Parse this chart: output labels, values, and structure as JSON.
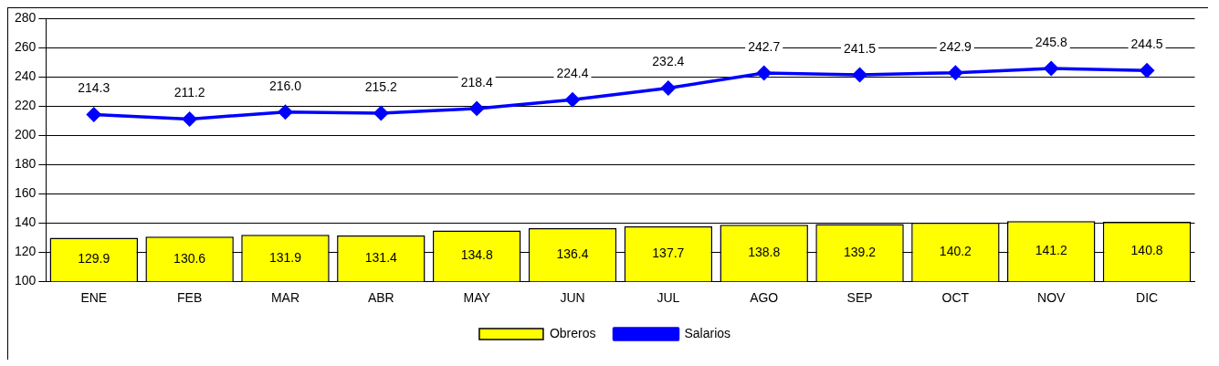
{
  "chart_data": {
    "type": "bar",
    "categories": [
      "ENE",
      "FEB",
      "MAR",
      "ABR",
      "MAY",
      "JUN",
      "JUL",
      "AGO",
      "SEP",
      "OCT",
      "NOV",
      "DIC"
    ],
    "series": [
      {
        "name": "Obreros",
        "color": "#ffff00",
        "values": [
          129.9,
          130.6,
          131.9,
          131.4,
          134.8,
          136.4,
          137.7,
          138.8,
          139.2,
          140.2,
          141.2,
          140.8
        ]
      },
      {
        "name": "Salarios",
        "type": "line",
        "color": "#0000ff",
        "values": [
          214.3,
          211.2,
          216.0,
          215.2,
          218.4,
          224.4,
          232.4,
          242.7,
          241.5,
          242.9,
          245.8,
          244.5
        ]
      }
    ],
    "ylim": [
      100,
      280
    ],
    "yticks": [
      100,
      120,
      140,
      160,
      180,
      200,
      220,
      240,
      260,
      280
    ],
    "grid": "y",
    "legend": "bottom",
    "marker": "diamond",
    "line_style": "solid",
    "value_labels": [
      [
        "129.9",
        "130.6",
        "131.9",
        "131.4",
        "134.8",
        "136.4",
        "137.7",
        "138.8",
        "139.2",
        "140.2",
        "141.2",
        "140.8"
      ],
      [
        "214.3",
        "211.2",
        "216.0",
        "215.2",
        "218.4",
        "224.4",
        "232.4",
        "242.7",
        "241.5",
        "242.9",
        "245.8",
        "244.5"
      ]
    ]
  }
}
